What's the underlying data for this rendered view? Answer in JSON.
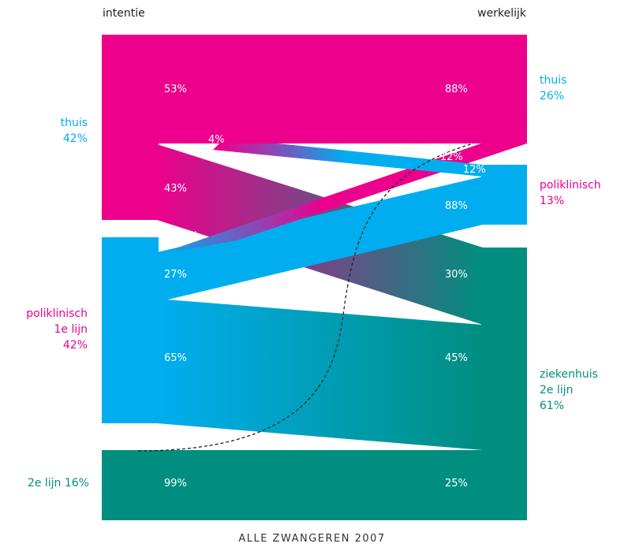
{
  "colors": {
    "home": "#ec008c",
    "poli": "#00aeef",
    "hospital": "#008e80"
  },
  "header": {
    "left": "intentie",
    "right": "werkelijk"
  },
  "left_labels": {
    "home": {
      "name": "thuis",
      "pct": "42%"
    },
    "poli": {
      "name": "poliklinisch",
      "sub": "1e lijn",
      "pct": "42%"
    },
    "second": {
      "text": "2e lijn 16%"
    }
  },
  "right_labels": {
    "home": {
      "name": "thuis",
      "pct": "26%"
    },
    "poli": {
      "name": "poliklinisch",
      "pct": "13%"
    },
    "hospital": {
      "name": "ziekenhuis",
      "sub": "2e lijn",
      "pct": "61%"
    }
  },
  "flows": {
    "home_home": {
      "left": "53%",
      "right": "88%"
    },
    "home_poli": {
      "label": "4%",
      "right": "12%"
    },
    "home_hosp": {
      "left": "43%",
      "right": "30%"
    },
    "poli_home": {
      "label": "8%",
      "right": "12%"
    },
    "poli_poli": {
      "left": "27%",
      "right": "88%"
    },
    "poli_hosp": {
      "left": "65%",
      "right": "45%"
    },
    "second_hosp": {
      "left": "99%",
      "right": "25%"
    }
  },
  "footer": "ALLE ZWANGEREN 2007"
}
